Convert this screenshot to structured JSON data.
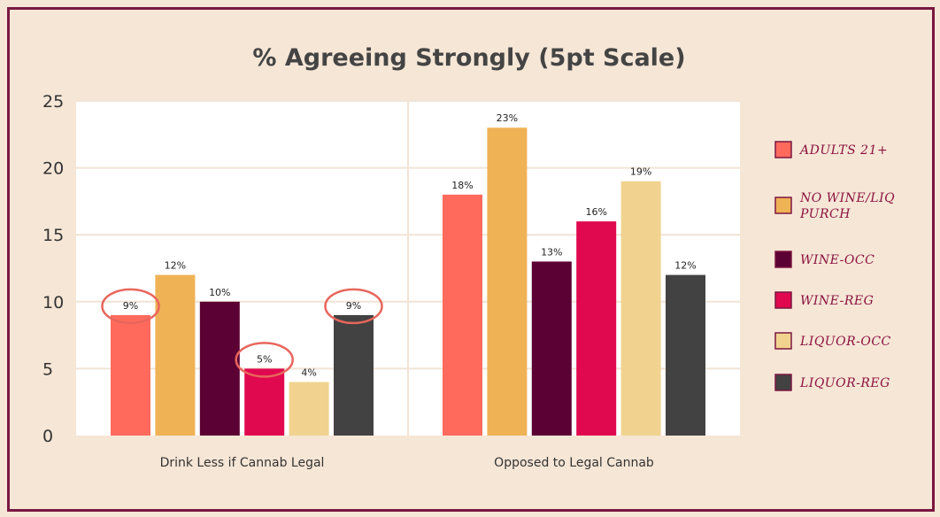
{
  "chart_data": {
    "type": "bar",
    "title": "% Agreeing Strongly (5pt Scale)",
    "categories": [
      "Drink Less if Cannab Legal",
      "Opposed to Legal Cannab"
    ],
    "ylim": [
      0,
      25
    ],
    "yticks": [
      0,
      5,
      10,
      15,
      20,
      25
    ],
    "grid": true,
    "legend_position": "right",
    "series": [
      {
        "name": "ADULTS 21+",
        "color": "#ff6a5c",
        "values": [
          9,
          18
        ],
        "labels": [
          "9%",
          "18%"
        ]
      },
      {
        "name": "NO WINE/LIQ PURCH",
        "color": "#efb255",
        "values": [
          12,
          23
        ],
        "labels": [
          "12%",
          "23%"
        ]
      },
      {
        "name": "WINE-OCC",
        "color": "#5c0133",
        "values": [
          10,
          13
        ],
        "labels": [
          "10%",
          "13%"
        ]
      },
      {
        "name": "WINE-REG",
        "color": "#e0094f",
        "values": [
          5,
          16
        ],
        "labels": [
          "5%",
          "16%"
        ]
      },
      {
        "name": "LIQUOR-OCC",
        "color": "#f1d38f",
        "values": [
          4,
          19
        ],
        "labels": [
          "4%",
          "19%"
        ]
      },
      {
        "name": "LIQUOR-REG",
        "color": "#424242",
        "values": [
          9,
          12
        ],
        "labels": [
          "9%",
          "12%"
        ]
      }
    ],
    "highlighted_labels": [
      "5%",
      "9%"
    ],
    "highlight_color": "#e8665c"
  }
}
